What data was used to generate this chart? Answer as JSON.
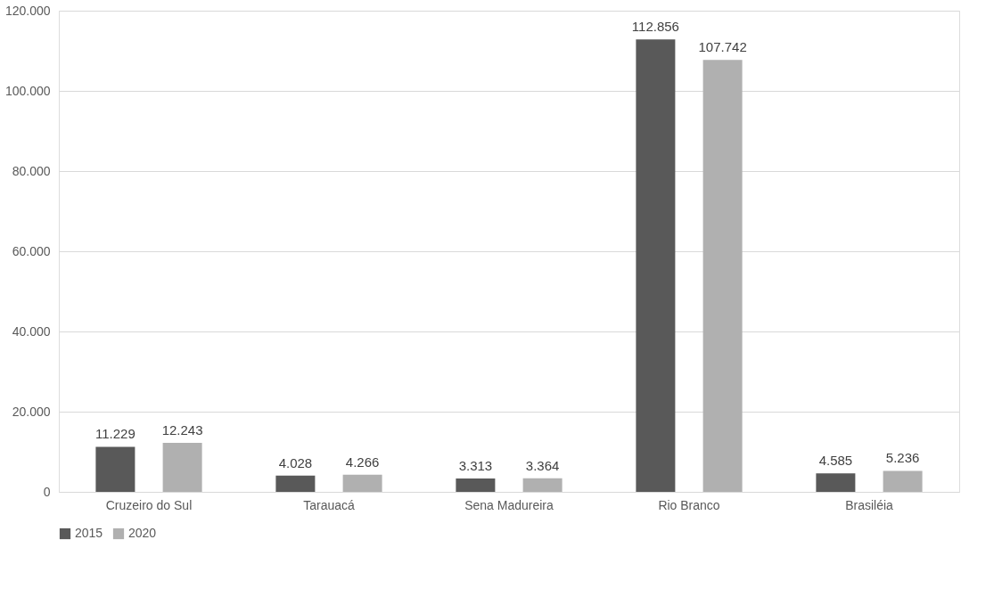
{
  "chart_data": {
    "type": "bar",
    "categories": [
      "Cruzeiro do Sul",
      "Tarauacá",
      "Sena Madureira",
      "Rio Branco",
      "Brasiléia"
    ],
    "series": [
      {
        "name": "2015",
        "color": "#595959",
        "values": [
          11229,
          4028,
          3313,
          112856,
          4585
        ],
        "value_labels": [
          "11.229",
          "4.028",
          "3.313",
          "112.856",
          "4.585"
        ]
      },
      {
        "name": "2020",
        "color": "#b0b0b0",
        "values": [
          12243,
          4266,
          3364,
          107742,
          5236
        ],
        "value_labels": [
          "12.243",
          "4.266",
          "3.364",
          "107.742",
          "5.236"
        ]
      }
    ],
    "ylim": [
      0,
      120000
    ],
    "yticks": [
      0,
      {
        "value": 20000,
        "label": "20.000"
      },
      {
        "value": 40000,
        "label": "40.000"
      },
      {
        "value": 60000,
        "label": "60.000"
      },
      {
        "value": 80000,
        "label": "80.000"
      },
      {
        "value": 100000,
        "label": "100.000"
      },
      {
        "value": 120000,
        "label": "120.000"
      }
    ],
    "grid": "y",
    "legend": "bottom"
  }
}
